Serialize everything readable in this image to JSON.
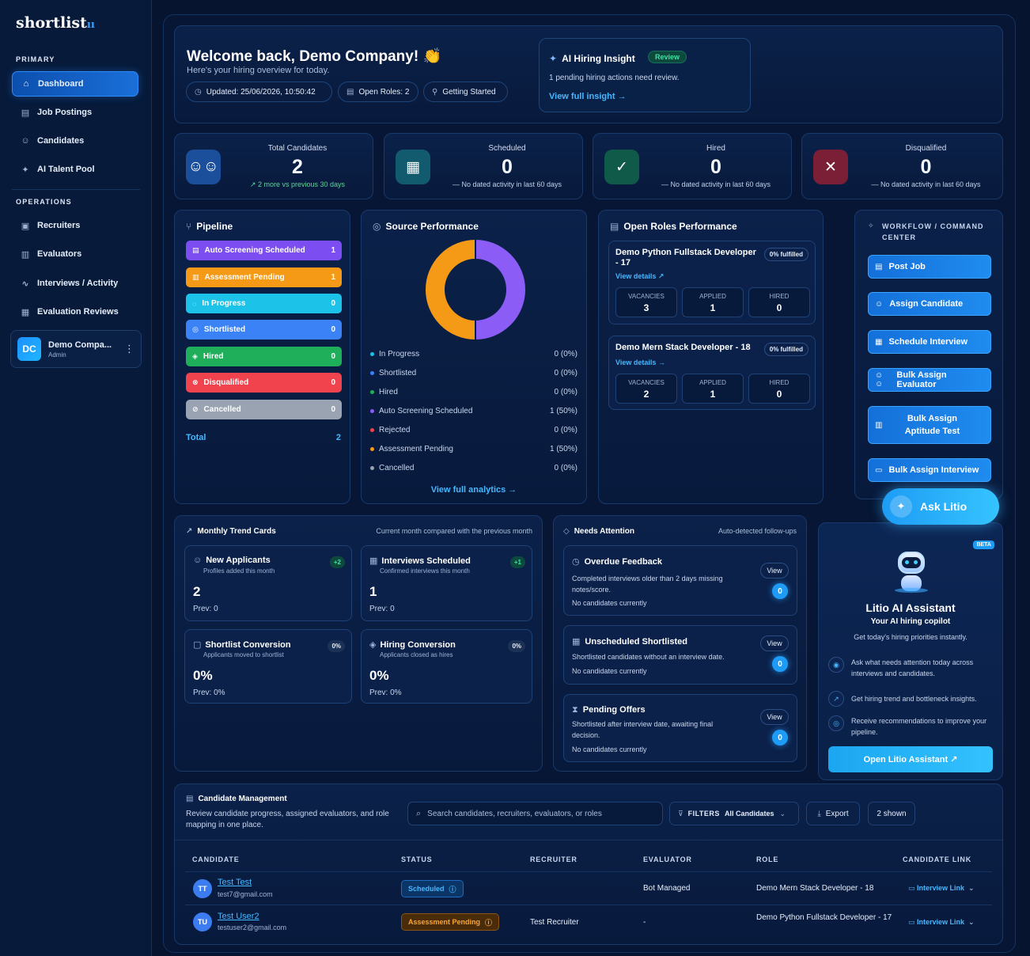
{
  "brand": {
    "name": "shortlist",
    "suffix": "ıı"
  },
  "sidebar": {
    "primary_label": "PRIMARY",
    "primary": [
      {
        "label": "Dashboard",
        "icon": "dashboard-icon",
        "glyph": "⌂"
      },
      {
        "label": "Job Postings",
        "icon": "briefcase-icon",
        "glyph": "▤"
      },
      {
        "label": "Candidates",
        "icon": "users-icon",
        "glyph": "☺"
      },
      {
        "label": "AI Talent Pool",
        "icon": "sparkle-icon",
        "glyph": "✦"
      }
    ],
    "operations_label": "OPERATIONS",
    "operations": [
      {
        "label": "Recruiters",
        "icon": "id-card-icon",
        "glyph": "▣"
      },
      {
        "label": "Evaluators",
        "icon": "clipboard-icon",
        "glyph": "▥"
      },
      {
        "label": "Interviews / Activity",
        "icon": "activity-icon",
        "glyph": "∿"
      },
      {
        "label": "Evaluation Reviews",
        "icon": "review-icon",
        "glyph": "▦"
      }
    ],
    "user": {
      "initials": "DC",
      "name": "Demo Compa...",
      "role": "Admin"
    }
  },
  "welcome": {
    "title": "Welcome back, Demo Company! 👏",
    "subtitle": "Here's your hiring overview for today.",
    "updated": "Updated: 25/06/2026, 10:50:42",
    "open_roles": "Open Roles: 2",
    "getting_started": "Getting Started"
  },
  "insight": {
    "title": "AI Hiring Insight",
    "badge": "Review",
    "desc": "1 pending hiring actions need review.",
    "link": "View full insight →"
  },
  "stats": [
    {
      "label": "Total Candidates",
      "value": "2",
      "note": "↗ 2 more vs previous 30 days",
      "color": "#1b4f9c",
      "glyph": "☺☺"
    },
    {
      "label": "Scheduled",
      "value": "0",
      "note": "— No dated activity in last 60 days",
      "color": "#125a6e",
      "glyph": "▦"
    },
    {
      "label": "Hired",
      "value": "0",
      "note": "— No dated activity in last 60 days",
      "color": "#0f5a48",
      "glyph": "✓"
    },
    {
      "label": "Disqualified",
      "value": "0",
      "note": "— No dated activity in last 60 days",
      "color": "#7a1f35",
      "glyph": "✕"
    }
  ],
  "pipeline": {
    "title": "Pipeline",
    "stages": [
      {
        "label": "Auto Screening Scheduled",
        "count": "1",
        "color": "#7c4df0",
        "glyph": "▤"
      },
      {
        "label": "Assessment Pending",
        "count": "1",
        "color": "#f59a16",
        "glyph": "▥"
      },
      {
        "label": "In Progress",
        "count": "0",
        "color": "#1cc2e8",
        "glyph": "◌"
      },
      {
        "label": "Shortlisted",
        "count": "0",
        "color": "#3b82f6",
        "glyph": "◎"
      },
      {
        "label": "Hired",
        "count": "0",
        "color": "#1fae5a",
        "glyph": "◈"
      },
      {
        "label": "Disqualified",
        "count": "0",
        "color": "#f0434d",
        "glyph": "⊗"
      },
      {
        "label": "Cancelled",
        "count": "0",
        "color": "#9aa3b2",
        "glyph": "⊘"
      }
    ],
    "total_label": "Total",
    "total": "2"
  },
  "source": {
    "title": "Source Performance",
    "link": "View full analytics →",
    "rows": [
      {
        "label": "In Progress",
        "value": "0 (0%)",
        "color": "#1cc2e8"
      },
      {
        "label": "Shortlisted",
        "value": "0 (0%)",
        "color": "#3b82f6"
      },
      {
        "label": "Hired",
        "value": "0 (0%)",
        "color": "#1fae5a"
      },
      {
        "label": "Auto Screening Scheduled",
        "value": "1 (50%)",
        "color": "#8b5cf6"
      },
      {
        "label": "Rejected",
        "value": "0 (0%)",
        "color": "#f0434d"
      },
      {
        "label": "Assessment Pending",
        "value": "1 (50%)",
        "color": "#f59a16"
      },
      {
        "label": "Cancelled",
        "value": "0 (0%)",
        "color": "#9aa3b2"
      }
    ]
  },
  "chart_data": {
    "type": "pie",
    "categories": [
      "Auto Screening Scheduled",
      "Assessment Pending"
    ],
    "values": [
      1,
      1
    ],
    "colors": [
      "#8b5cf6",
      "#f59a16"
    ]
  },
  "roles": {
    "title": "Open Roles Performance",
    "items": [
      {
        "title": "Demo Python Fullstack Developer - 17",
        "fulfilled": "0% fulfilled",
        "link": "View details ↗",
        "vacancies": "3",
        "applied": "1",
        "hired": "0"
      },
      {
        "title": "Demo Mern Stack Developer - 18",
        "fulfilled": "0% fulfilled",
        "link": "View details →",
        "vacancies": "2",
        "applied": "1",
        "hired": "0"
      }
    ],
    "lbl_vac": "VACANCIES",
    "lbl_app": "APPLIED",
    "lbl_hired": "HIRED"
  },
  "workflow": {
    "title": "WORKFLOW / COMMAND CENTER",
    "buttons": [
      {
        "label": "Post Job",
        "glyph": "▤"
      },
      {
        "label": "Assign Candidate",
        "glyph": "☺"
      },
      {
        "label": "Schedule Interview",
        "glyph": "▦"
      },
      {
        "label": "Bulk Assign Evaluator",
        "glyph": "☺☺"
      },
      {
        "label": "Bulk Assign Aptitude Test",
        "glyph": "▥"
      },
      {
        "label": "Bulk Assign Interview",
        "glyph": "▭"
      }
    ]
  },
  "ask": {
    "label": "Ask Litio"
  },
  "trends": {
    "title": "Monthly Trend Cards",
    "subtitle": "Current month compared with the previous month",
    "cards": [
      {
        "title": "New Applicants",
        "sub": "Profiles added this month",
        "badge": "+2",
        "value": "2",
        "prev": "Prev: 0",
        "glyph": "☺"
      },
      {
        "title": "Interviews Scheduled",
        "sub": "Confirmed interviews this month",
        "badge": "+1",
        "value": "1",
        "prev": "Prev: 0",
        "glyph": "▦"
      },
      {
        "title": "Shortlist Conversion",
        "sub": "Applicants moved to shortlist",
        "badge": "0%",
        "value": "0%",
        "prev": "Prev: 0%",
        "glyph": "▢"
      },
      {
        "title": "Hiring Conversion",
        "sub": "Applicants closed as hires",
        "badge": "0%",
        "value": "0%",
        "prev": "Prev: 0%",
        "glyph": "◈"
      }
    ]
  },
  "attention": {
    "title": "Needs Attention",
    "subtitle": "Auto-detected follow-ups",
    "view": "View",
    "items": [
      {
        "title": "Overdue Feedback",
        "desc": "Completed interviews older than 2 days missing notes/score.",
        "note": "No candidates currently",
        "count": "0",
        "glyph": "◷"
      },
      {
        "title": "Unscheduled Shortlisted",
        "desc": "Shortlisted candidates without an interview date.",
        "note": "No candidates currently",
        "count": "0",
        "glyph": "▦"
      },
      {
        "title": "Pending Offers",
        "desc": "Shortlisted after interview date, awaiting final decision.",
        "note": "No candidates currently",
        "count": "0",
        "glyph": "⧗"
      }
    ]
  },
  "litio": {
    "badge": "BETA",
    "title": "Litio AI Assistant",
    "subtitle": "Your AI hiring copilot",
    "desc": "Get today's hiring priorities instantly.",
    "features": [
      {
        "text": "Ask what needs attention today across interviews and candidates.",
        "glyph": "◉"
      },
      {
        "text": "Get hiring trend and bottleneck insights.",
        "glyph": "↗"
      },
      {
        "text": "Receive recommendations to improve your pipeline.",
        "glyph": "◎"
      }
    ],
    "button": "Open Litio Assistant ↗"
  },
  "candidates": {
    "title": "Candidate Management",
    "desc": "Review candidate progress, assigned evaluators, and role mapping in one place.",
    "search_placeholder": "Search candidates, recruiters, evaluators, or roles",
    "filters_label": "FILTERS",
    "filters_value": "All Candidates",
    "export": "Export",
    "shown": "2 shown",
    "columns": [
      "CANDIDATE",
      "STATUS",
      "RECRUITER",
      "EVALUATOR",
      "ROLE",
      "CANDIDATE LINK"
    ],
    "rows": [
      {
        "initials": "TT",
        "name": "Test Test",
        "email": "test7@gmail.com",
        "status": "Scheduled",
        "recruiter": "",
        "evaluator": "Bot Managed",
        "role": "Demo Mern Stack Developer - 18",
        "link": "Interview Link"
      },
      {
        "initials": "TU",
        "name": "Test User2",
        "email": "testuser2@gmail.com",
        "status": "Assessment Pending",
        "recruiter": "Test Recruiter",
        "evaluator": "-",
        "role": "Demo Python Fullstack Developer - 17",
        "link": "Interview Link"
      }
    ]
  }
}
